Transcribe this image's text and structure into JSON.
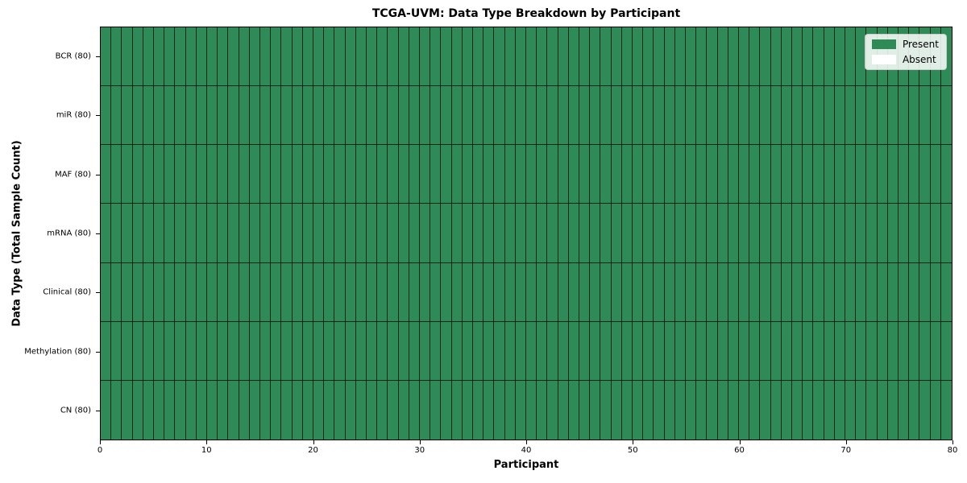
{
  "title": "TCGA-UVM: Data Type Breakdown by Participant",
  "xlabel": "Participant",
  "ylabel": "Data Type (Total Sample Count)",
  "legend": {
    "position": "upper right",
    "items": [
      {
        "label": "Present",
        "color": "#2E8B57"
      },
      {
        "label": "Absent",
        "color": "#FFFFFF"
      }
    ]
  },
  "colors": {
    "present": "#2E8B57",
    "absent": "#FFFFFF",
    "cell_border": "#1A1A1A",
    "axis": "#000000",
    "legend_background": "#F2F2EF"
  },
  "chart_data": {
    "type": "heatmap",
    "title": "TCGA-UVM: Data Type Breakdown by Participant",
    "xlabel": "Participant",
    "ylabel": "Data Type (Total Sample Count)",
    "x_range": [
      0,
      80
    ],
    "x_ticks": [
      0,
      10,
      20,
      30,
      40,
      50,
      60,
      70,
      80
    ],
    "n_participants": 80,
    "grid": "cell borders on",
    "legend_entries": [
      "Present",
      "Absent"
    ],
    "legend_position": "upper right",
    "value_encoding": {
      "1": "Present",
      "0": "Absent"
    },
    "rows": [
      {
        "label": "BCR (80)",
        "data_type": "BCR",
        "total_sample_count": 80,
        "present_count": 80,
        "absent_count": 0,
        "values": [
          1,
          1,
          1,
          1,
          1,
          1,
          1,
          1,
          1,
          1,
          1,
          1,
          1,
          1,
          1,
          1,
          1,
          1,
          1,
          1,
          1,
          1,
          1,
          1,
          1,
          1,
          1,
          1,
          1,
          1,
          1,
          1,
          1,
          1,
          1,
          1,
          1,
          1,
          1,
          1,
          1,
          1,
          1,
          1,
          1,
          1,
          1,
          1,
          1,
          1,
          1,
          1,
          1,
          1,
          1,
          1,
          1,
          1,
          1,
          1,
          1,
          1,
          1,
          1,
          1,
          1,
          1,
          1,
          1,
          1,
          1,
          1,
          1,
          1,
          1,
          1,
          1,
          1,
          1,
          1
        ]
      },
      {
        "label": "miR (80)",
        "data_type": "miR",
        "total_sample_count": 80,
        "present_count": 80,
        "absent_count": 0,
        "values": [
          1,
          1,
          1,
          1,
          1,
          1,
          1,
          1,
          1,
          1,
          1,
          1,
          1,
          1,
          1,
          1,
          1,
          1,
          1,
          1,
          1,
          1,
          1,
          1,
          1,
          1,
          1,
          1,
          1,
          1,
          1,
          1,
          1,
          1,
          1,
          1,
          1,
          1,
          1,
          1,
          1,
          1,
          1,
          1,
          1,
          1,
          1,
          1,
          1,
          1,
          1,
          1,
          1,
          1,
          1,
          1,
          1,
          1,
          1,
          1,
          1,
          1,
          1,
          1,
          1,
          1,
          1,
          1,
          1,
          1,
          1,
          1,
          1,
          1,
          1,
          1,
          1,
          1,
          1,
          1
        ]
      },
      {
        "label": "MAF (80)",
        "data_type": "MAF",
        "total_sample_count": 80,
        "present_count": 80,
        "absent_count": 0,
        "values": [
          1,
          1,
          1,
          1,
          1,
          1,
          1,
          1,
          1,
          1,
          1,
          1,
          1,
          1,
          1,
          1,
          1,
          1,
          1,
          1,
          1,
          1,
          1,
          1,
          1,
          1,
          1,
          1,
          1,
          1,
          1,
          1,
          1,
          1,
          1,
          1,
          1,
          1,
          1,
          1,
          1,
          1,
          1,
          1,
          1,
          1,
          1,
          1,
          1,
          1,
          1,
          1,
          1,
          1,
          1,
          1,
          1,
          1,
          1,
          1,
          1,
          1,
          1,
          1,
          1,
          1,
          1,
          1,
          1,
          1,
          1,
          1,
          1,
          1,
          1,
          1,
          1,
          1,
          1,
          1
        ]
      },
      {
        "label": "mRNA (80)",
        "data_type": "mRNA",
        "total_sample_count": 80,
        "present_count": 80,
        "absent_count": 0,
        "values": [
          1,
          1,
          1,
          1,
          1,
          1,
          1,
          1,
          1,
          1,
          1,
          1,
          1,
          1,
          1,
          1,
          1,
          1,
          1,
          1,
          1,
          1,
          1,
          1,
          1,
          1,
          1,
          1,
          1,
          1,
          1,
          1,
          1,
          1,
          1,
          1,
          1,
          1,
          1,
          1,
          1,
          1,
          1,
          1,
          1,
          1,
          1,
          1,
          1,
          1,
          1,
          1,
          1,
          1,
          1,
          1,
          1,
          1,
          1,
          1,
          1,
          1,
          1,
          1,
          1,
          1,
          1,
          1,
          1,
          1,
          1,
          1,
          1,
          1,
          1,
          1,
          1,
          1,
          1,
          1
        ]
      },
      {
        "label": "Clinical (80)",
        "data_type": "Clinical",
        "total_sample_count": 80,
        "present_count": 80,
        "absent_count": 0,
        "values": [
          1,
          1,
          1,
          1,
          1,
          1,
          1,
          1,
          1,
          1,
          1,
          1,
          1,
          1,
          1,
          1,
          1,
          1,
          1,
          1,
          1,
          1,
          1,
          1,
          1,
          1,
          1,
          1,
          1,
          1,
          1,
          1,
          1,
          1,
          1,
          1,
          1,
          1,
          1,
          1,
          1,
          1,
          1,
          1,
          1,
          1,
          1,
          1,
          1,
          1,
          1,
          1,
          1,
          1,
          1,
          1,
          1,
          1,
          1,
          1,
          1,
          1,
          1,
          1,
          1,
          1,
          1,
          1,
          1,
          1,
          1,
          1,
          1,
          1,
          1,
          1,
          1,
          1,
          1,
          1
        ]
      },
      {
        "label": "Methylation (80)",
        "data_type": "Methylation",
        "total_sample_count": 80,
        "present_count": 80,
        "absent_count": 0,
        "values": [
          1,
          1,
          1,
          1,
          1,
          1,
          1,
          1,
          1,
          1,
          1,
          1,
          1,
          1,
          1,
          1,
          1,
          1,
          1,
          1,
          1,
          1,
          1,
          1,
          1,
          1,
          1,
          1,
          1,
          1,
          1,
          1,
          1,
          1,
          1,
          1,
          1,
          1,
          1,
          1,
          1,
          1,
          1,
          1,
          1,
          1,
          1,
          1,
          1,
          1,
          1,
          1,
          1,
          1,
          1,
          1,
          1,
          1,
          1,
          1,
          1,
          1,
          1,
          1,
          1,
          1,
          1,
          1,
          1,
          1,
          1,
          1,
          1,
          1,
          1,
          1,
          1,
          1,
          1,
          1
        ]
      },
      {
        "label": "CN (80)",
        "data_type": "CN",
        "total_sample_count": 80,
        "present_count": 80,
        "absent_count": 0,
        "values": [
          1,
          1,
          1,
          1,
          1,
          1,
          1,
          1,
          1,
          1,
          1,
          1,
          1,
          1,
          1,
          1,
          1,
          1,
          1,
          1,
          1,
          1,
          1,
          1,
          1,
          1,
          1,
          1,
          1,
          1,
          1,
          1,
          1,
          1,
          1,
          1,
          1,
          1,
          1,
          1,
          1,
          1,
          1,
          1,
          1,
          1,
          1,
          1,
          1,
          1,
          1,
          1,
          1,
          1,
          1,
          1,
          1,
          1,
          1,
          1,
          1,
          1,
          1,
          1,
          1,
          1,
          1,
          1,
          1,
          1,
          1,
          1,
          1,
          1,
          1,
          1,
          1,
          1,
          1,
          1
        ]
      }
    ]
  }
}
